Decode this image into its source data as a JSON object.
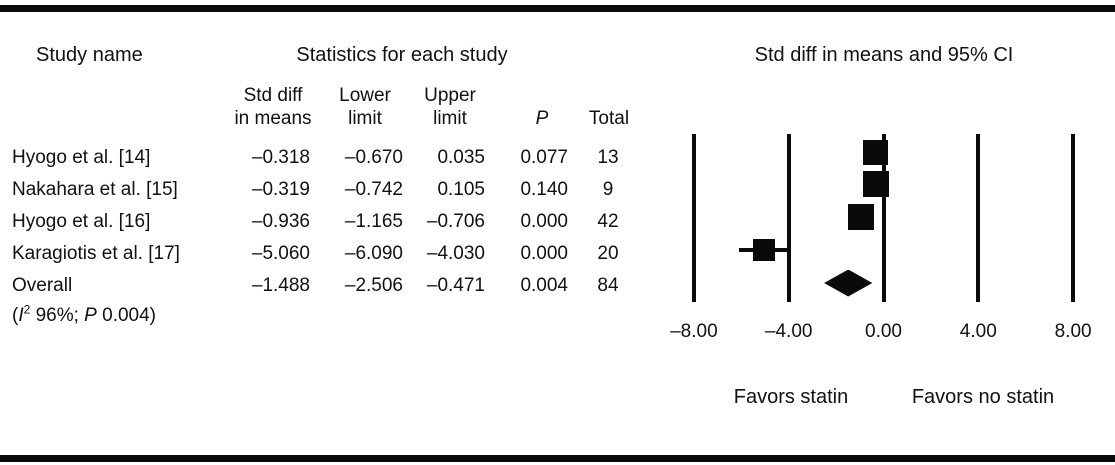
{
  "figure": {
    "left_header": "Study name",
    "stats_header": "Statistics for each study",
    "plot_header": "Std diff in means and 95% CI"
  },
  "columns": {
    "std_diff_line1": "Std diff",
    "std_diff_line2": "in means",
    "lower_line1": "Lower",
    "lower_line2": "limit",
    "upper_line1": "Upper",
    "upper_line2": "limit",
    "p": "P",
    "total": "Total"
  },
  "table": {
    "rows": [
      {
        "study": "Hyogo et al. [14]",
        "std_diff": "–0.318",
        "lower": "–0.670",
        "upper": "0.035",
        "p": "0.077",
        "total": "13"
      },
      {
        "study": "Nakahara et al. [15]",
        "std_diff": "–0.319",
        "lower": "–0.742",
        "upper": "0.105",
        "p": "0.140",
        "total": "9"
      },
      {
        "study": "Hyogo et al. [16]",
        "std_diff": "–0.936",
        "lower": "–1.165",
        "upper": "–0.706",
        "p": "0.000",
        "total": "42"
      },
      {
        "study": "Karagiotis et al. [17]",
        "std_diff": "–5.060",
        "lower": "–6.090",
        "upper": "–4.030",
        "p": "0.000",
        "total": "20"
      },
      {
        "study": "Overall",
        "std_diff": "–1.488",
        "lower": "–2.506",
        "upper": "–0.471",
        "p": "0.004",
        "total": "84"
      }
    ],
    "overall_note": {
      "open": "(",
      "i": "I",
      "sup": "2",
      "mid": " 96%; ",
      "p": "P",
      "tail": " 0.004)"
    }
  },
  "chart_data": {
    "type": "forest",
    "title": "Std diff in means and 95% CI",
    "x_ticks": [
      -8,
      -4,
      0,
      4,
      8
    ],
    "x_tick_labels": [
      "–8.00",
      "–4.00",
      "0.00",
      "4.00",
      "8.00"
    ],
    "footer_left": "Favors statin",
    "footer_right": "Favors no statin",
    "grid": true,
    "studies": [
      {
        "label": "Hyogo et al. [14]",
        "mean": -0.318,
        "lower": -0.67,
        "upper": 0.035,
        "p": 0.077,
        "total": 13,
        "marker": "square",
        "marker_size": 25
      },
      {
        "label": "Nakahara et al. [15]",
        "mean": -0.319,
        "lower": -0.742,
        "upper": 0.105,
        "p": 0.14,
        "total": 9,
        "marker": "square",
        "marker_size": 26
      },
      {
        "label": "Hyogo et al. [16]",
        "mean": -0.936,
        "lower": -1.165,
        "upper": -0.706,
        "p": 0.0,
        "total": 42,
        "marker": "square",
        "marker_size": 26
      },
      {
        "label": "Karagiotis et al. [17]",
        "mean": -5.06,
        "lower": -6.09,
        "upper": -4.03,
        "p": 0.0,
        "total": 20,
        "marker": "square",
        "marker_size": 22
      },
      {
        "label": "Overall",
        "mean": -1.488,
        "lower": -2.506,
        "upper": -0.471,
        "p": 0.004,
        "total": 84,
        "marker": "diamond",
        "heterogeneity": "(I2 96%; P 0.004)"
      }
    ]
  }
}
